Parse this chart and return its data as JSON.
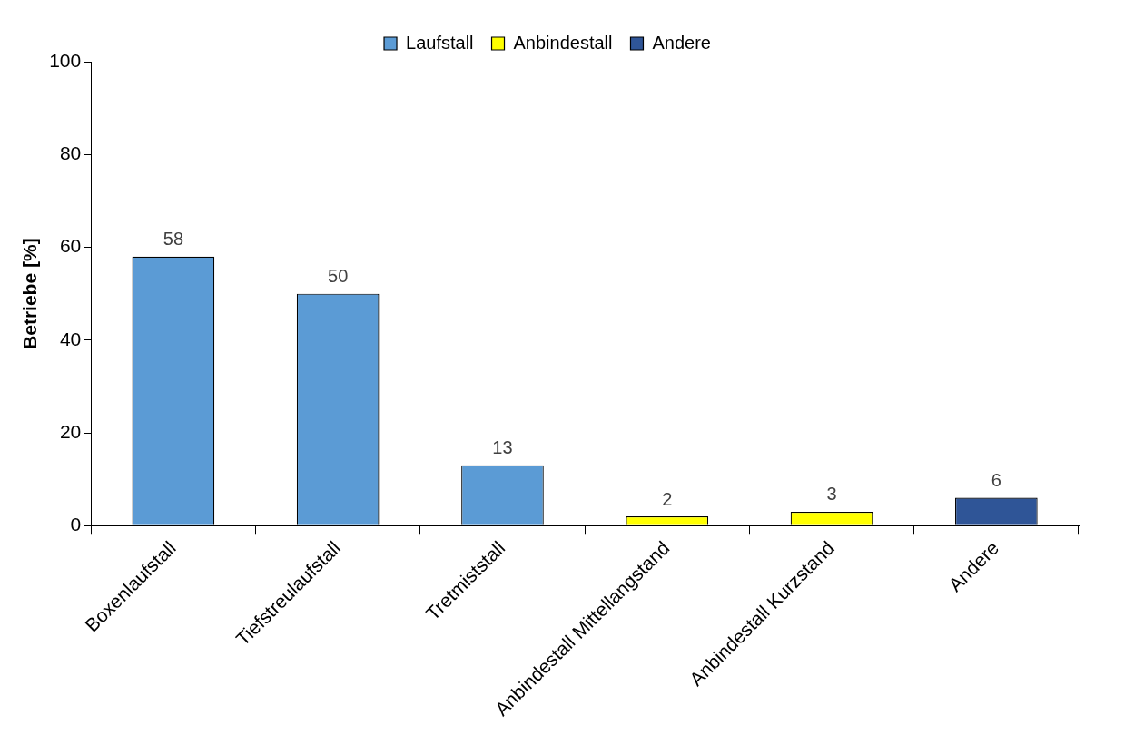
{
  "chart_data": {
    "type": "bar",
    "ylabel": "Betriebe [%]",
    "categories": [
      "Boxenlaufstall",
      "Tiefstreulaufstall",
      "Tretmiststall",
      "Anbindestall Mittellangstand",
      "Anbindestall Kurzstand",
      "Andere"
    ],
    "series": [
      {
        "name": "Laufstall",
        "color": "#5b9bd5",
        "values": [
          58,
          50,
          13,
          null,
          null,
          null
        ]
      },
      {
        "name": "Anbindestall",
        "color": "#ffff00",
        "values": [
          null,
          null,
          null,
          2,
          3,
          null
        ]
      },
      {
        "name": "Andere",
        "color": "#2f5597",
        "values": [
          null,
          null,
          null,
          null,
          null,
          6
        ]
      }
    ],
    "stacked": true,
    "ylim": [
      0,
      100
    ],
    "yticks": [
      0,
      20,
      40,
      60,
      80,
      100
    ],
    "grid": false,
    "legend": "top",
    "data_labels": true
  }
}
